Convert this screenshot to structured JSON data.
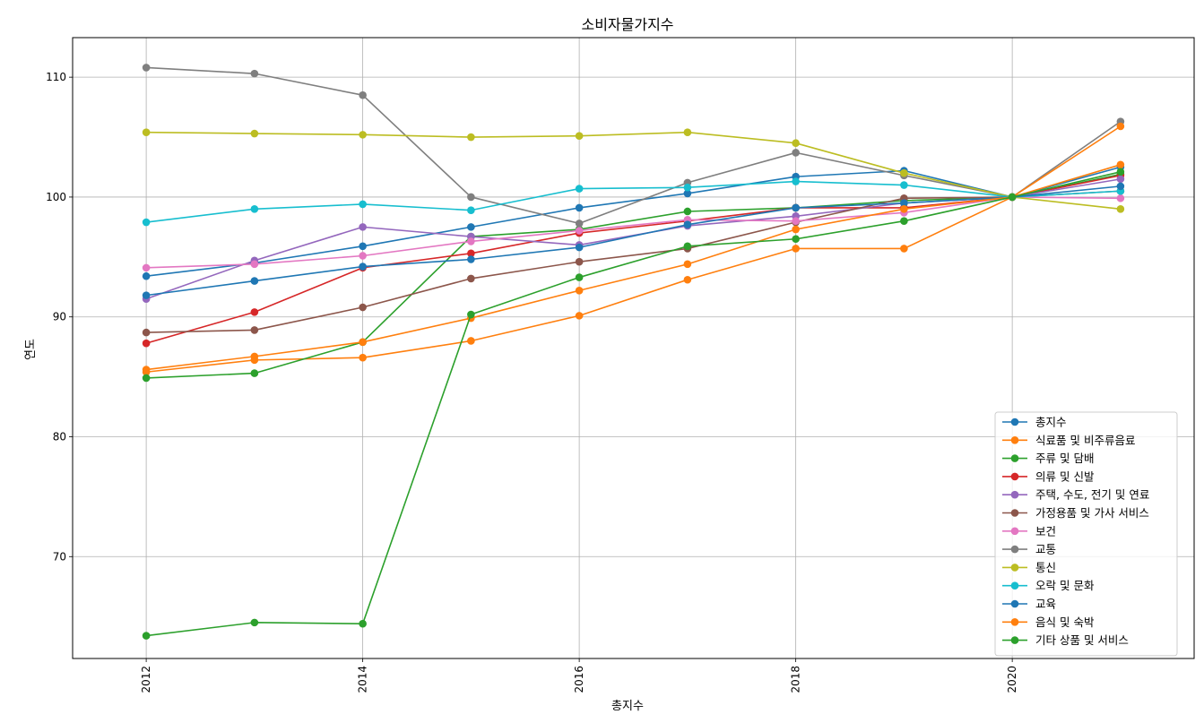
{
  "chart_data": {
    "type": "line",
    "title": "소비자물가지수",
    "xlabel": "총지수",
    "ylabel": "연도",
    "xlim": [
      2011.32,
      2021.68
    ],
    "ylim": [
      61.5,
      113.3
    ],
    "x_ticks": [
      2012,
      2014,
      2016,
      2018,
      2020
    ],
    "y_ticks": [
      70,
      80,
      90,
      100,
      110
    ],
    "grid": true,
    "legend_position": "lower-right",
    "x": [
      2012,
      2013,
      2014,
      2015,
      2016,
      2017,
      2018,
      2019,
      2020,
      2021
    ],
    "series": [
      {
        "name": "총지수",
        "color": "#1f77b4",
        "values": [
          93.4,
          94.5,
          95.9,
          97.5,
          99.1,
          100.3,
          101.7,
          102.2,
          100.0,
          102.5
        ]
      },
      {
        "name": "식료품 및 비주류음료",
        "color": "#ff7f0e",
        "values": [
          85.4,
          86.4,
          86.6,
          88.0,
          90.1,
          93.1,
          95.7,
          95.7,
          100.0,
          102.7
        ]
      },
      {
        "name": "주류 및 담배",
        "color": "#2ca02c",
        "values": [
          84.9,
          85.3,
          87.9,
          96.7,
          97.3,
          98.8,
          99.1,
          99.7,
          100.0,
          101.9
        ]
      },
      {
        "name": "의류 및 신발",
        "color": "#d62728",
        "values": [
          87.8,
          90.4,
          94.1,
          95.3,
          97.0,
          98.0,
          99.1,
          99.1,
          100.0,
          101.8
        ]
      },
      {
        "name": "주택, 수도, 전기 및 연료",
        "color": "#9467bd",
        "values": [
          91.5,
          94.7,
          97.5,
          96.7,
          96.0,
          97.6,
          98.4,
          99.5,
          100.0,
          101.5
        ]
      },
      {
        "name": "가정용품 및 가사 서비스",
        "color": "#8c564b",
        "values": [
          88.7,
          88.9,
          90.8,
          93.2,
          94.6,
          95.7,
          97.9,
          99.9,
          100.0,
          100.5
        ]
      },
      {
        "name": "보건",
        "color": "#e377c2",
        "values": [
          94.1,
          94.4,
          95.1,
          96.3,
          97.2,
          98.1,
          98.0,
          98.7,
          100.0,
          99.9
        ]
      },
      {
        "name": "교통",
        "color": "#7f7f7f",
        "values": [
          110.8,
          110.3,
          108.5,
          100.0,
          97.8,
          101.2,
          103.7,
          101.8,
          100.0,
          106.3
        ]
      },
      {
        "name": "통신",
        "color": "#bcbd22",
        "values": [
          105.4,
          105.3,
          105.2,
          105.0,
          105.1,
          105.4,
          104.5,
          102.0,
          100.0,
          99.0
        ]
      },
      {
        "name": "오락 및 문화",
        "color": "#17becf",
        "values": [
          97.9,
          99.0,
          99.4,
          98.9,
          100.7,
          100.8,
          101.3,
          101.0,
          100.0,
          100.5
        ]
      },
      {
        "name": "교육",
        "color": "#1f77b4",
        "values": [
          91.8,
          93.0,
          94.2,
          94.8,
          95.8,
          97.7,
          99.1,
          99.5,
          100.0,
          100.9
        ]
      },
      {
        "name": "음식 및 숙박",
        "color": "#ff7f0e",
        "values": [
          85.6,
          86.7,
          87.9,
          89.9,
          92.2,
          94.4,
          97.3,
          99.0,
          100.0,
          105.9
        ]
      },
      {
        "name": "기타 상품 및 서비스",
        "color": "#2ca02c",
        "values": [
          63.4,
          64.5,
          64.4,
          90.2,
          93.3,
          95.9,
          96.5,
          98.0,
          100.0,
          102.1
        ]
      }
    ]
  }
}
